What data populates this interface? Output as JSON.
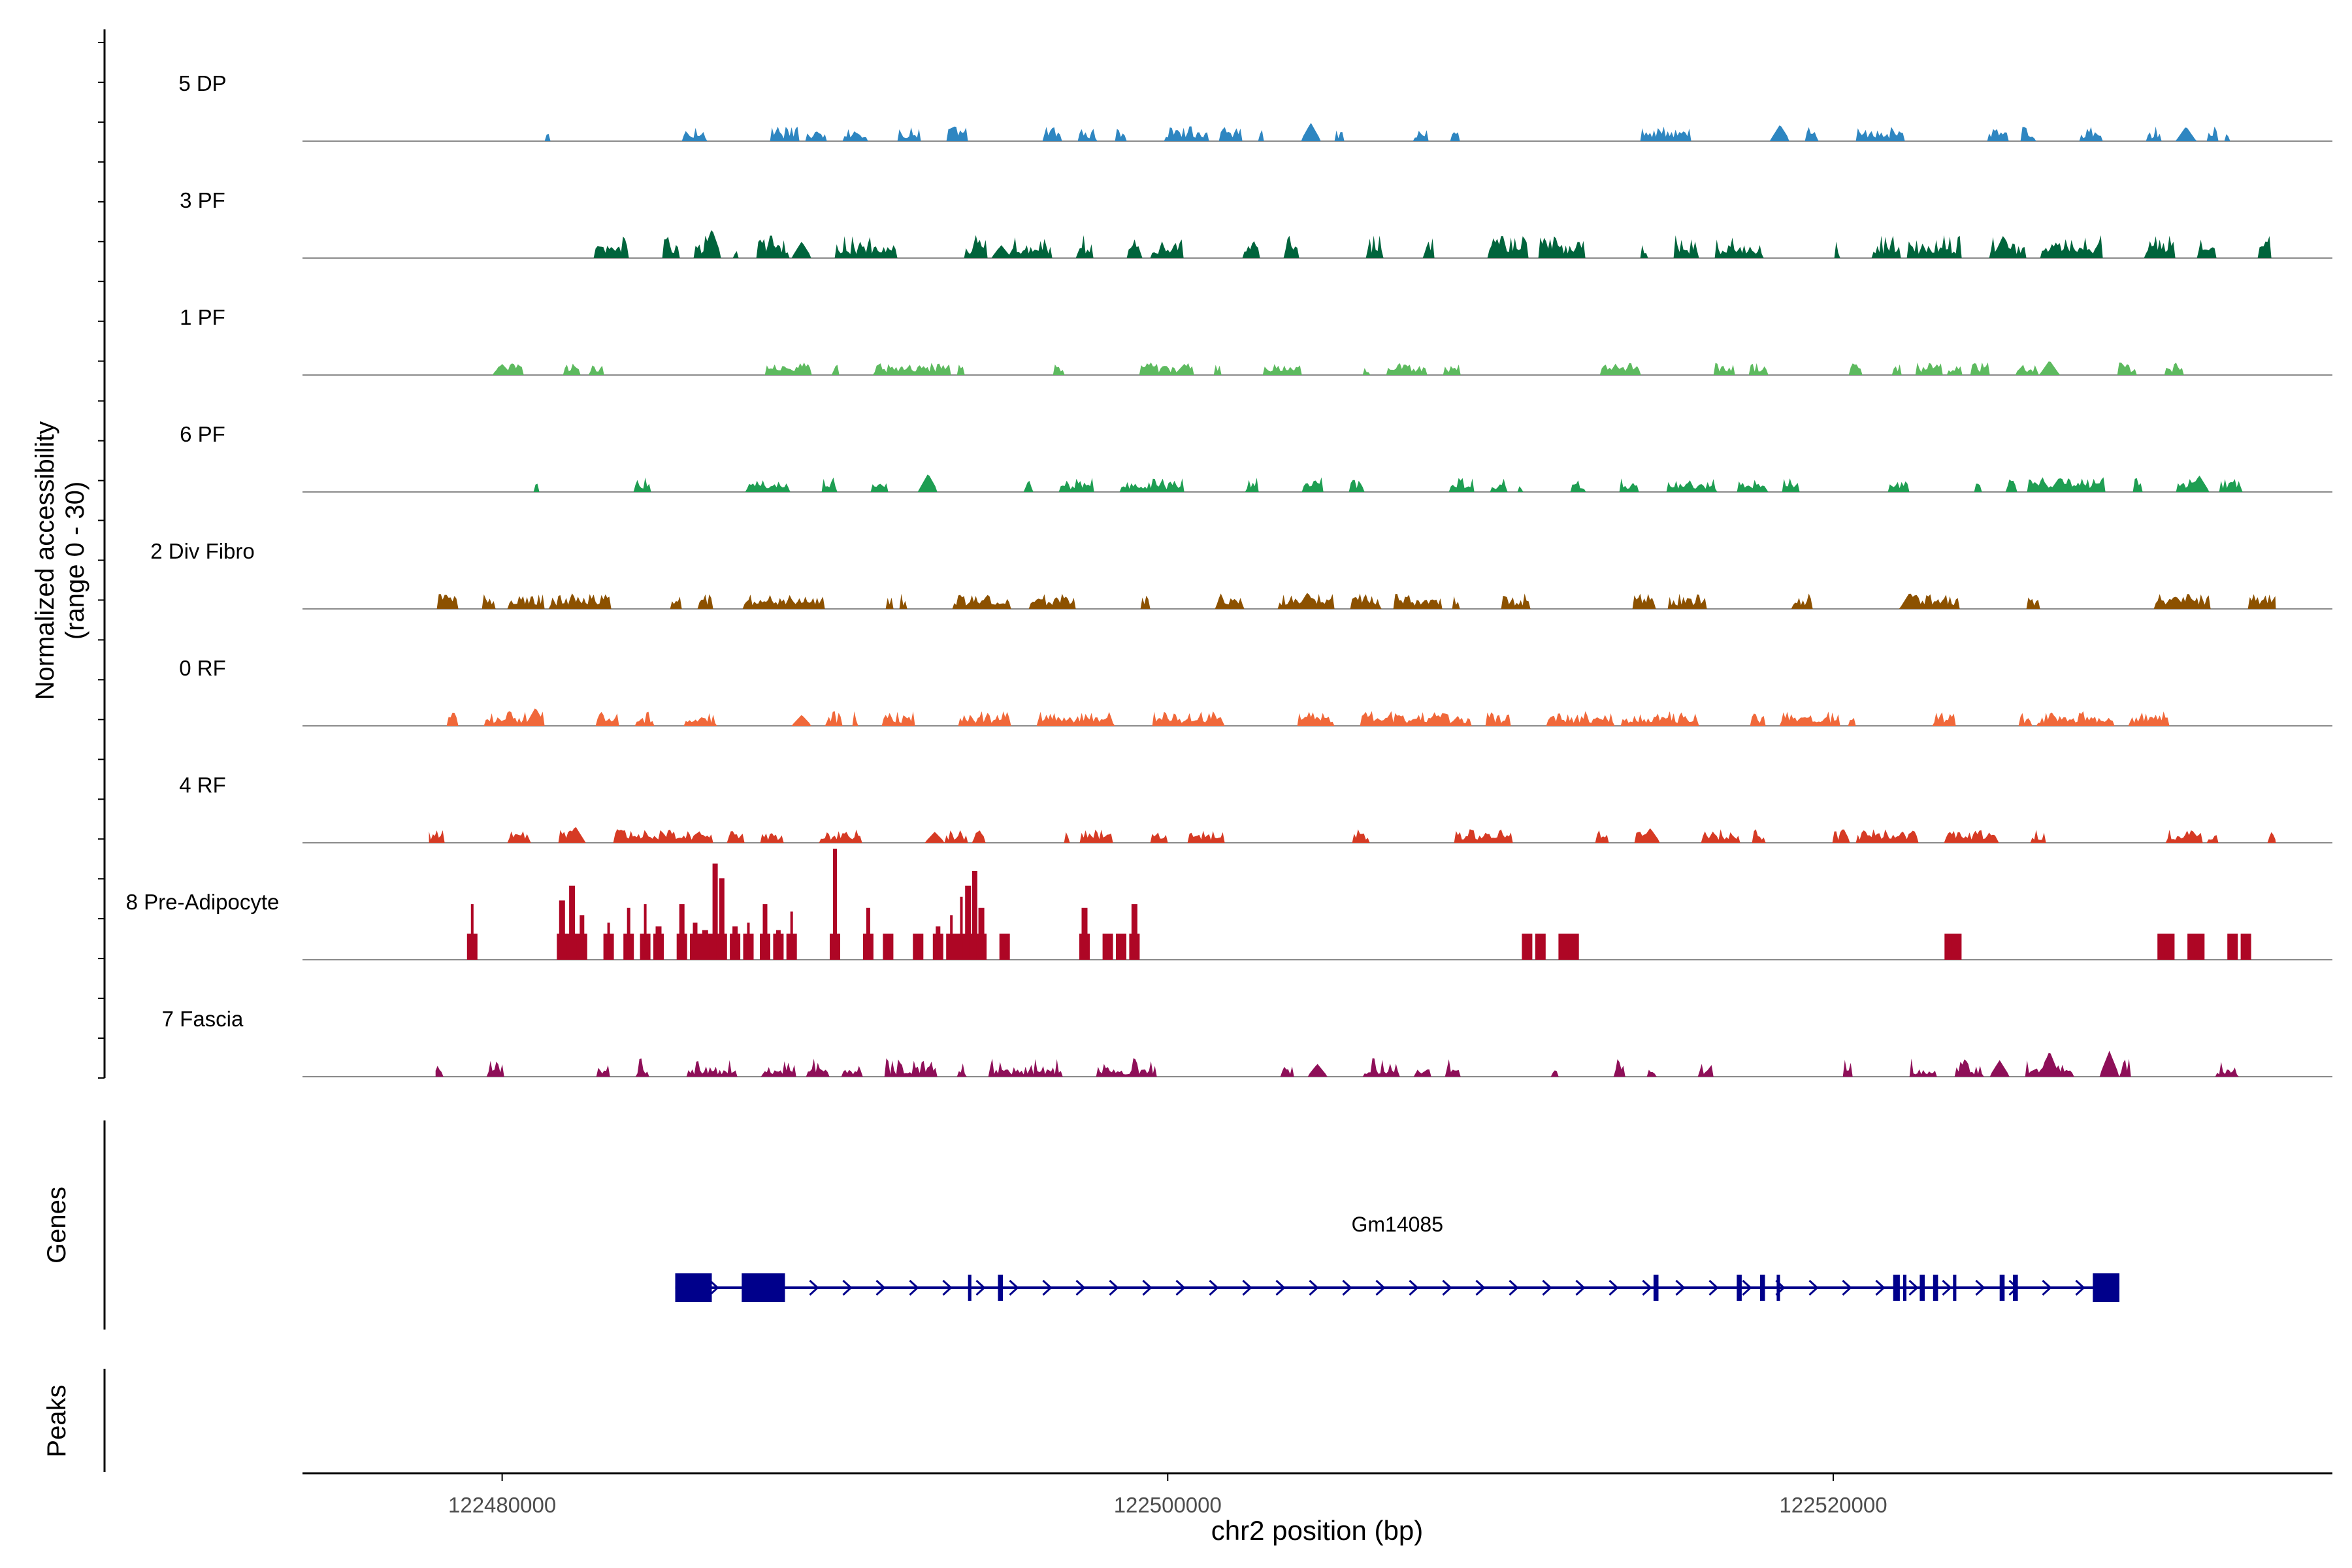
{
  "chart_data": {
    "type": "area",
    "title": "",
    "ylabel_lines": [
      "Normalized accessibility",
      "(range 0 - 30)"
    ],
    "ylim": [
      0,
      30
    ],
    "xlabel": "chr2 position (bp)",
    "xlim": [
      122474000,
      122535000
    ],
    "xticks": [
      122480000,
      122500000,
      122520000
    ],
    "xtick_labels": [
      "122480000",
      "122500000",
      "122520000"
    ],
    "track_label_genes": "Genes",
    "track_label_peaks": "Peaks",
    "series": [
      {
        "name": "5 DP",
        "color": "#2E86C1",
        "data_start": 122477800,
        "data_end": 122533300,
        "density": 0.32,
        "typical": 2.5,
        "max": 5,
        "peaks": [
          [
            122504300,
            5.0
          ],
          [
            122518400,
            4.5
          ],
          [
            122530600,
            4.0
          ]
        ]
      },
      {
        "name": "3 PF",
        "color": "#00643C",
        "data_start": 122477800,
        "data_end": 122533300,
        "density": 0.55,
        "typical": 3.5,
        "max": 8,
        "peaks": [
          [
            122486300,
            8.0
          ],
          [
            122489000,
            4.5
          ],
          [
            122525100,
            6.0
          ],
          [
            122495000,
            3.5
          ]
        ]
      },
      {
        "name": "1 PF",
        "color": "#5DBA5F",
        "data_start": 122478000,
        "data_end": 122532000,
        "density": 0.45,
        "typical": 2.5,
        "max": 4,
        "peaks": [
          [
            122480000,
            3.0
          ],
          [
            122500500,
            3.0
          ],
          [
            122526500,
            4.0
          ]
        ]
      },
      {
        "name": "6 PF",
        "color": "#1E9E52",
        "data_start": 122480000,
        "data_end": 122532500,
        "density": 0.42,
        "typical": 2.5,
        "max": 5,
        "peaks": [
          [
            122492800,
            5.0
          ],
          [
            122531000,
            4.5
          ],
          [
            122526800,
            4.0
          ]
        ]
      },
      {
        "name": "2 Div Fibro",
        "color": "#8C5100",
        "data_start": 122477800,
        "data_end": 122533300,
        "density": 0.55,
        "typical": 3.0,
        "max": 5,
        "peaks": [
          [
            122504200,
            4.5
          ],
          [
            122522300,
            4.5
          ],
          [
            122530300,
            3.5
          ]
        ]
      },
      {
        "name": "0 RF",
        "color": "#F0683A",
        "data_start": 122477800,
        "data_end": 122533300,
        "density": 0.62,
        "typical": 2.5,
        "max": 5,
        "peaks": [
          [
            122481000,
            5.0
          ],
          [
            122489000,
            3.0
          ],
          [
            122508000,
            3.0
          ]
        ]
      },
      {
        "name": "4 RF",
        "color": "#D63A24",
        "data_start": 122477800,
        "data_end": 122533300,
        "density": 0.55,
        "typical": 2.5,
        "max": 4.5,
        "peaks": [
          [
            122482200,
            4.5
          ],
          [
            122514500,
            4.0
          ],
          [
            122493000,
            3.0
          ]
        ]
      },
      {
        "name": "8 Pre-Adipocyte",
        "color": "#AE0625",
        "data_start": 122478000,
        "data_end": 122533300,
        "density": 0.0,
        "typical": 0,
        "max": 30,
        "peaks": [
          [
            122479100,
            15
          ],
          [
            122481800,
            16
          ],
          [
            122482100,
            20
          ],
          [
            122482400,
            12
          ],
          [
            122483200,
            10
          ],
          [
            122483800,
            14
          ],
          [
            122484300,
            15
          ],
          [
            122484700,
            9
          ],
          [
            122485400,
            15
          ],
          [
            122485800,
            10
          ],
          [
            122486100,
            8
          ],
          [
            122486400,
            26
          ],
          [
            122486600,
            22
          ],
          [
            122487000,
            9
          ],
          [
            122487400,
            10
          ],
          [
            122487900,
            15
          ],
          [
            122488300,
            8
          ],
          [
            122488700,
            13
          ],
          [
            122490000,
            30
          ],
          [
            122491000,
            14
          ],
          [
            122491600,
            7
          ],
          [
            122492500,
            7
          ],
          [
            122493100,
            9
          ],
          [
            122493500,
            12
          ],
          [
            122493800,
            17
          ],
          [
            122494000,
            20
          ],
          [
            122494200,
            24
          ],
          [
            122494400,
            14
          ],
          [
            122495100,
            7
          ],
          [
            122497500,
            14
          ],
          [
            122498200,
            7
          ],
          [
            122498600,
            7
          ],
          [
            122499000,
            15
          ],
          [
            122510800,
            7
          ],
          [
            122511200,
            7
          ],
          [
            122511900,
            7
          ],
          [
            122512200,
            7
          ],
          [
            122523500,
            7
          ],
          [
            122523700,
            7
          ],
          [
            122529900,
            7
          ],
          [
            122530100,
            7
          ],
          [
            122530800,
            7
          ],
          [
            122531000,
            7
          ],
          [
            122532000,
            7
          ],
          [
            122532400,
            7
          ]
        ]
      },
      {
        "name": "7 Fascia",
        "color": "#8E0F58",
        "data_start": 122478000,
        "data_end": 122533000,
        "density": 0.45,
        "typical": 2.0,
        "max": 7,
        "peaks": [
          [
            122526500,
            7.0
          ],
          [
            122528300,
            7.0
          ],
          [
            122525000,
            4.5
          ],
          [
            122504500,
            3.5
          ]
        ]
      }
    ],
    "gene": {
      "name": "Gm14085",
      "strand": "+",
      "color": "#00008B",
      "start": 122485200,
      "end": 122528600,
      "exons": [
        [
          122485200,
          122486300
        ],
        [
          122487200,
          122488500
        ],
        [
          122494000,
          122494100
        ],
        [
          122494900,
          122495050
        ],
        [
          122514600,
          122514750
        ],
        [
          122517100,
          122517250
        ],
        [
          122517800,
          122517950
        ],
        [
          122518300,
          122518400
        ],
        [
          122521800,
          122522000
        ],
        [
          122522100,
          122522200
        ],
        [
          122522600,
          122522750
        ],
        [
          122523000,
          122523150
        ],
        [
          122523600,
          122523700
        ],
        [
          122525000,
          122525150
        ],
        [
          122525400,
          122525550
        ],
        [
          122527800,
          122528600
        ]
      ]
    },
    "peaks_track": []
  }
}
